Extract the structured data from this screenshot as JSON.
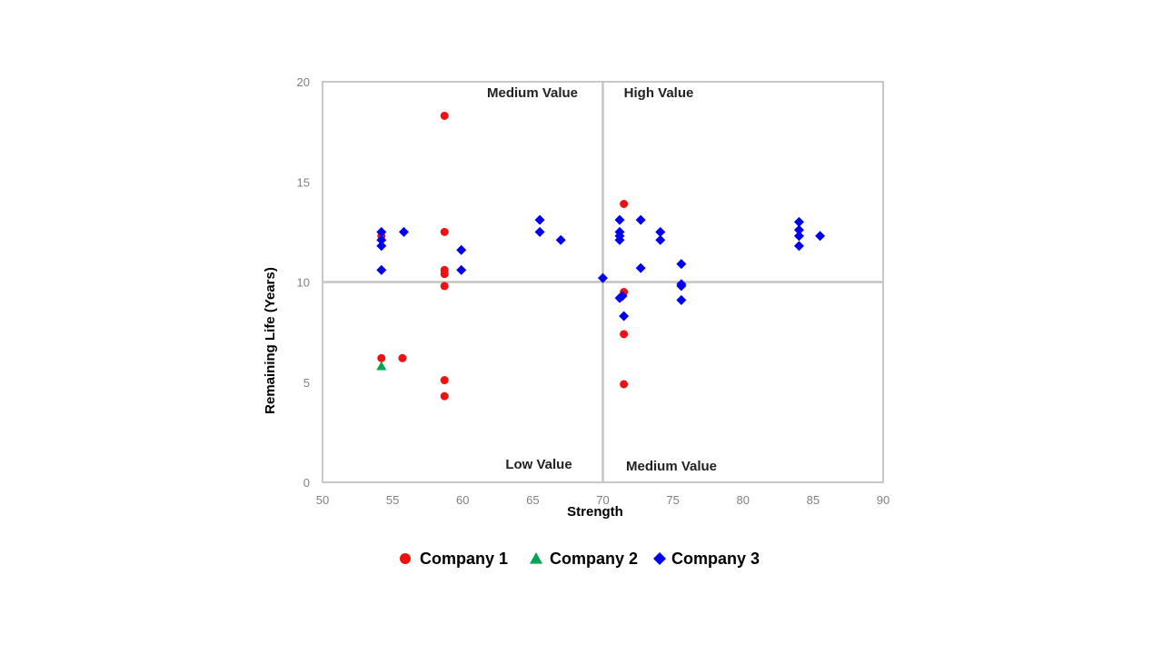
{
  "chart_data": {
    "type": "scatter",
    "xlabel": "Strength",
    "ylabel": "Remaining Life (Years)",
    "xlim": [
      50,
      90
    ],
    "ylim": [
      0,
      20
    ],
    "xticks": [
      "50",
      "55",
      "60",
      "65",
      "70",
      "75",
      "80",
      "85",
      "90"
    ],
    "yticks": [
      "0",
      "5",
      "10",
      "15",
      "20"
    ],
    "grid": false,
    "legend_position": "bottom",
    "reference_lines": {
      "x": 70,
      "y": 10
    },
    "quadrant_labels": {
      "top_left": "Medium Value",
      "top_right": "High Value",
      "bottom_left": "Low Value",
      "bottom_right": "Medium Value"
    },
    "series": [
      {
        "name": "Company 1",
        "marker": "circle",
        "color": "#ee1111",
        "points": [
          [
            58.7,
            18.3
          ],
          [
            58.7,
            12.5
          ],
          [
            58.7,
            10.6
          ],
          [
            58.7,
            10.4
          ],
          [
            58.7,
            9.8
          ],
          [
            58.7,
            5.1
          ],
          [
            58.7,
            4.3
          ],
          [
            54.2,
            12.3
          ],
          [
            54.2,
            6.2
          ],
          [
            55.7,
            6.2
          ],
          [
            71.5,
            13.9
          ],
          [
            71.5,
            9.5
          ],
          [
            71.5,
            7.4
          ],
          [
            71.5,
            4.9
          ]
        ]
      },
      {
        "name": "Company 2",
        "marker": "triangle",
        "color": "#00a651",
        "points": [
          [
            54.2,
            5.8
          ]
        ]
      },
      {
        "name": "Company 3",
        "marker": "diamond",
        "color": "#0000ee",
        "points": [
          [
            54.2,
            12.5
          ],
          [
            54.2,
            12.1
          ],
          [
            54.2,
            11.8
          ],
          [
            54.2,
            10.6
          ],
          [
            55.8,
            12.5
          ],
          [
            59.9,
            11.6
          ],
          [
            59.9,
            10.6
          ],
          [
            65.5,
            13.1
          ],
          [
            65.5,
            12.5
          ],
          [
            67.0,
            12.1
          ],
          [
            70.0,
            10.2
          ],
          [
            71.2,
            13.1
          ],
          [
            71.2,
            12.5
          ],
          [
            71.2,
            12.3
          ],
          [
            71.2,
            12.1
          ],
          [
            71.2,
            9.2
          ],
          [
            71.4,
            9.3
          ],
          [
            71.5,
            8.3
          ],
          [
            72.7,
            13.1
          ],
          [
            72.7,
            10.7
          ],
          [
            74.1,
            12.5
          ],
          [
            74.1,
            12.1
          ],
          [
            75.6,
            10.9
          ],
          [
            75.6,
            9.9
          ],
          [
            75.6,
            9.8
          ],
          [
            75.6,
            9.1
          ],
          [
            84.0,
            13.0
          ],
          [
            84.0,
            12.6
          ],
          [
            84.0,
            12.3
          ],
          [
            84.0,
            11.8
          ],
          [
            85.5,
            12.3
          ]
        ]
      }
    ]
  }
}
